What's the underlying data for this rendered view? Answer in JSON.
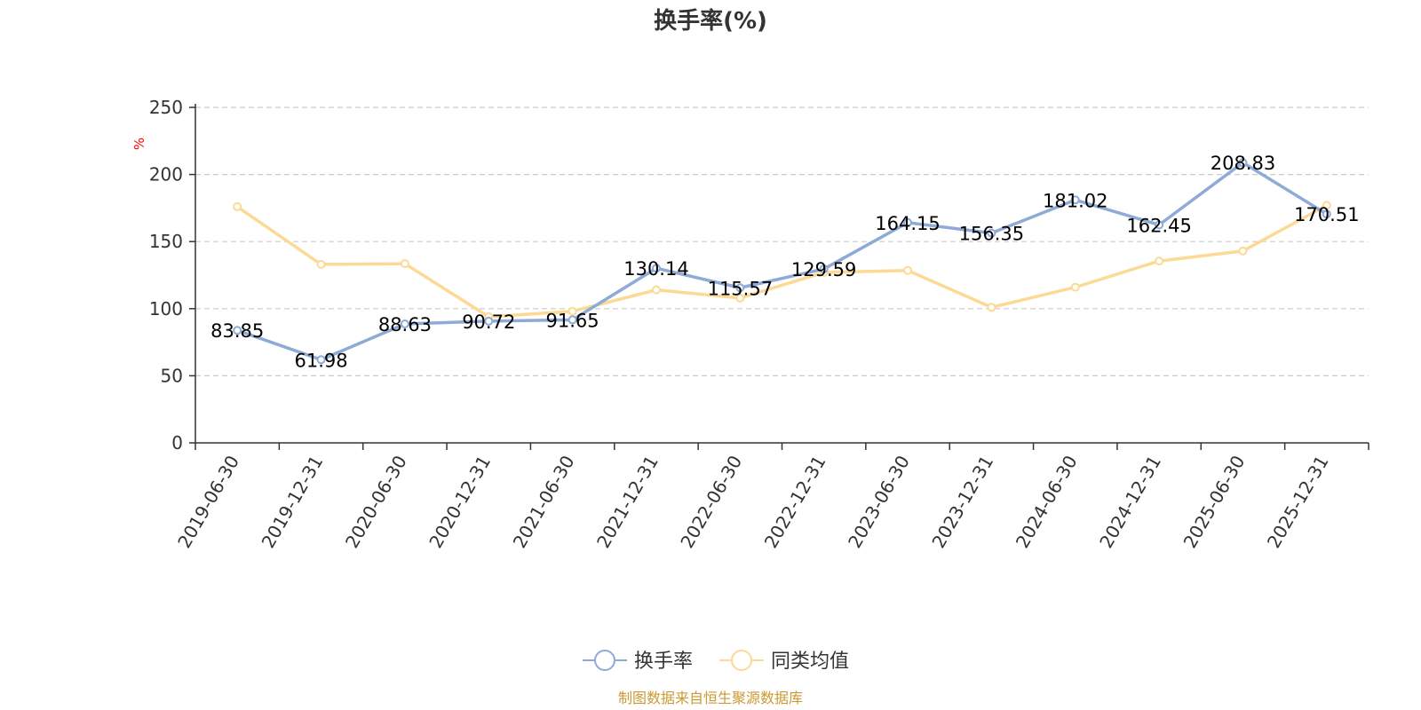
{
  "chart_data": {
    "type": "line",
    "title": "换手率(%)",
    "unit_label": "%",
    "categories": [
      "2019-06-30",
      "2019-12-31",
      "2020-06-30",
      "2020-12-31",
      "2021-06-30",
      "2021-12-31",
      "2022-06-30",
      "2022-12-31",
      "2023-06-30",
      "2023-12-31",
      "2024-06-30",
      "2024-12-31",
      "2025-06-30",
      "2025-12-31"
    ],
    "ylim": [
      0,
      250
    ],
    "yticks": [
      0,
      50,
      100,
      150,
      200,
      250
    ],
    "grid": true,
    "legend_position": "bottom-center",
    "series": [
      {
        "name": "换手率",
        "color": "#8eaad6",
        "show_labels": true,
        "values": [
          83.85,
          61.98,
          88.63,
          90.72,
          91.65,
          130.14,
          115.57,
          129.59,
          164.15,
          156.35,
          181.02,
          162.45,
          208.83,
          170.51
        ]
      },
      {
        "name": "同类均值",
        "color": "#fcd994",
        "show_labels": false,
        "values": [
          176,
          133,
          133.5,
          94,
          98,
          114,
          108,
          127,
          128.5,
          101,
          116,
          135.5,
          143,
          177
        ]
      }
    ]
  },
  "colors": {
    "axis": "#333333",
    "grid": "#cccccc",
    "unit": "#ff0000",
    "source": "#cc9933"
  },
  "source_text": "制图数据来自恒生聚源数据库"
}
